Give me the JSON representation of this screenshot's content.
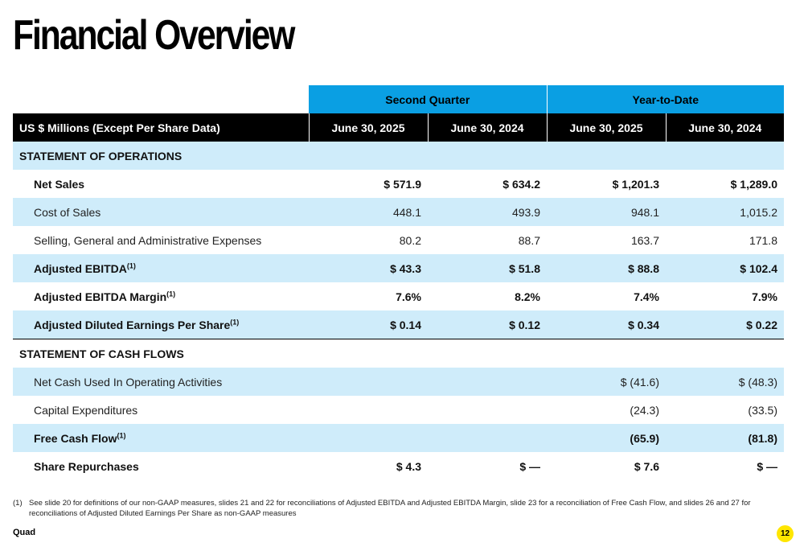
{
  "title": "Financial Overview",
  "table": {
    "group_headers": [
      "Second Quarter",
      "Year-to-Date"
    ],
    "column_headers": [
      "US $ Millions (Except Per Share Data)",
      "June 30, 2025",
      "June 30, 2024",
      "June 30, 2025",
      "June 30, 2024"
    ],
    "sections": [
      {
        "title": "STATEMENT OF OPERATIONS",
        "rows": [
          {
            "label": "Net Sales",
            "sup": "",
            "values": [
              "$ 571.9",
              "$ 634.2",
              "$ 1,201.3",
              "$ 1,289.0"
            ]
          },
          {
            "label": "Cost of Sales",
            "sup": "",
            "values": [
              "448.1",
              "493.9",
              "948.1",
              "1,015.2"
            ]
          },
          {
            "label": "Selling, General and Administrative Expenses",
            "sup": "",
            "values": [
              "80.2",
              "88.7",
              "163.7",
              "171.8"
            ]
          },
          {
            "label": "Adjusted EBITDA",
            "sup": "(1)",
            "values": [
              "$ 43.3",
              "$ 51.8",
              "$ 88.8",
              "$ 102.4"
            ]
          },
          {
            "label": "Adjusted EBITDA Margin",
            "sup": "(1)",
            "values": [
              "7.6%",
              "8.2%",
              "7.4%",
              "7.9%"
            ]
          },
          {
            "label": "Adjusted Diluted Earnings Per Share",
            "sup": "(1)",
            "values": [
              "$ 0.14",
              "$ 0.12",
              "$ 0.34",
              "$ 0.22"
            ]
          }
        ]
      },
      {
        "title": "STATEMENT OF CASH FLOWS",
        "rows": [
          {
            "label": "Net Cash Used In Operating Activities",
            "sup": "",
            "values": [
              "",
              "",
              "$ (41.6)",
              "$ (48.3)"
            ]
          },
          {
            "label": "Capital Expenditures",
            "sup": "",
            "values": [
              "",
              "",
              "(24.3)",
              "(33.5)"
            ]
          },
          {
            "label": "Free Cash Flow",
            "sup": "(1)",
            "values": [
              "",
              "",
              "(65.9)",
              "(81.8)"
            ]
          },
          {
            "label": "Share Repurchases",
            "sup": "",
            "values": [
              "$ 4.3",
              "$ —",
              "$ 7.6",
              "$ —"
            ]
          }
        ]
      }
    ]
  },
  "footnote": {
    "marker": "(1)",
    "text": "See slide 20 for definitions of our non-GAAP measures, slides 21 and 22 for reconciliations of Adjusted EBITDA and Adjusted EBITDA Margin, slide 23 for a reconciliation of Free Cash Flow, and slides 26 and 27 for reconciliations of Adjusted Diluted Earnings Per Share as non-GAAP measures"
  },
  "brand": "Quad",
  "page_number": "12"
}
